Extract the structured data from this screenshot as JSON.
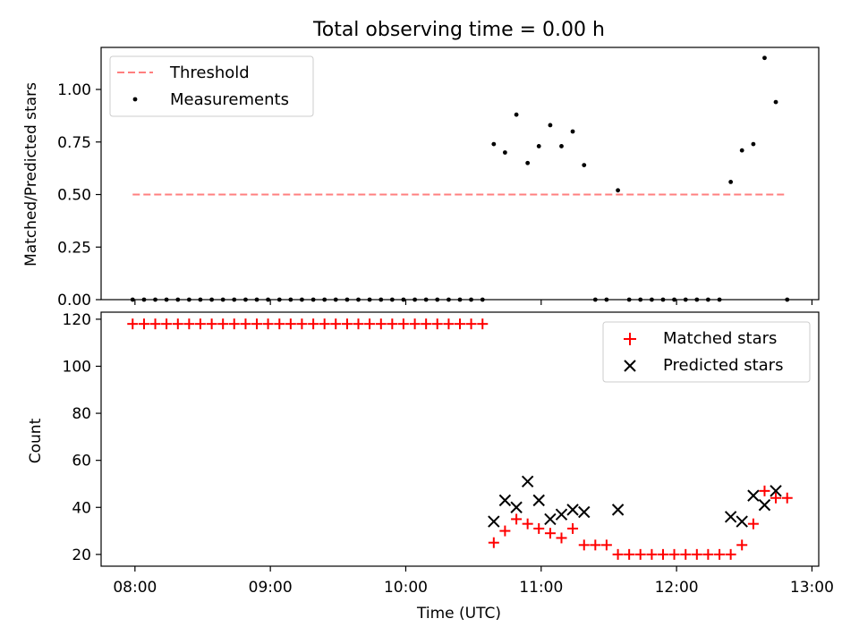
{
  "chart_data": {
    "title": "Total observing time = 0.00 h",
    "xlabel": "Time (UTC)",
    "x_ticks": [
      "08:00",
      "09:00",
      "10:00",
      "11:00",
      "12:00",
      "13:00"
    ],
    "x_tick_hours": [
      8,
      9,
      10,
      11,
      12,
      13
    ],
    "xlim_hours": [
      7.75,
      13.05
    ],
    "panels": [
      {
        "type": "scatter",
        "ylabel": "Matched/Predicted stars",
        "ylim": [
          0,
          1.2
        ],
        "y_ticks": [
          "0.00",
          "0.25",
          "0.50",
          "0.75",
          "1.00"
        ],
        "y_tick_values": [
          0,
          0.25,
          0.5,
          0.75,
          1.0
        ],
        "legend": {
          "position": "upper-left",
          "entries": [
            {
              "label": "Threshold",
              "kind": "dash",
              "color": "#ff7f7f"
            },
            {
              "label": "Measurements",
              "kind": "dot",
              "color": "#000000"
            }
          ]
        },
        "threshold": {
          "name": "Threshold",
          "y": 0.5,
          "x_range_hours": [
            7.983,
            12.817
          ],
          "color": "#ff7f7f"
        },
        "series": [
          {
            "name": "Measurements",
            "color": "#000000",
            "points": [
              [
                7.983,
                0
              ],
              [
                8.067,
                0
              ],
              [
                8.15,
                0
              ],
              [
                8.233,
                0
              ],
              [
                8.317,
                0
              ],
              [
                8.4,
                0
              ],
              [
                8.483,
                0
              ],
              [
                8.567,
                0
              ],
              [
                8.65,
                0
              ],
              [
                8.733,
                0
              ],
              [
                8.817,
                0
              ],
              [
                8.9,
                0
              ],
              [
                8.983,
                0
              ],
              [
                9.067,
                0
              ],
              [
                9.15,
                0
              ],
              [
                9.233,
                0
              ],
              [
                9.317,
                0
              ],
              [
                9.4,
                0
              ],
              [
                9.483,
                0
              ],
              [
                9.567,
                0
              ],
              [
                9.65,
                0
              ],
              [
                9.733,
                0
              ],
              [
                9.817,
                0
              ],
              [
                9.9,
                0
              ],
              [
                9.983,
                0
              ],
              [
                10.067,
                0
              ],
              [
                10.15,
                0
              ],
              [
                10.233,
                0
              ],
              [
                10.317,
                0
              ],
              [
                10.4,
                0
              ],
              [
                10.483,
                0
              ],
              [
                10.567,
                0
              ],
              [
                10.65,
                0.74
              ],
              [
                10.733,
                0.7
              ],
              [
                10.817,
                0.88
              ],
              [
                10.9,
                0.65
              ],
              [
                10.983,
                0.73
              ],
              [
                11.067,
                0.83
              ],
              [
                11.15,
                0.73
              ],
              [
                11.233,
                0.8
              ],
              [
                11.317,
                0.64
              ],
              [
                11.4,
                0
              ],
              [
                11.483,
                0
              ],
              [
                11.567,
                0.52
              ],
              [
                11.65,
                0
              ],
              [
                11.733,
                0
              ],
              [
                11.817,
                0
              ],
              [
                11.9,
                0
              ],
              [
                11.983,
                0
              ],
              [
                12.067,
                0
              ],
              [
                12.15,
                0
              ],
              [
                12.233,
                0
              ],
              [
                12.317,
                0
              ],
              [
                12.4,
                0.56
              ],
              [
                12.483,
                0.71
              ],
              [
                12.567,
                0.74
              ],
              [
                12.65,
                1.15
              ],
              [
                12.733,
                0.94
              ],
              [
                12.817,
                0
              ]
            ]
          }
        ]
      },
      {
        "type": "scatter",
        "ylabel": "Count",
        "ylim": [
          15,
          123
        ],
        "y_ticks": [
          "20",
          "40",
          "60",
          "80",
          "100",
          "120"
        ],
        "y_tick_values": [
          20,
          40,
          60,
          80,
          100,
          120
        ],
        "legend": {
          "position": "upper-right",
          "entries": [
            {
              "label": "Matched stars",
              "kind": "plus",
              "color": "#ff0000"
            },
            {
              "label": "Predicted stars",
              "kind": "x",
              "color": "#000000"
            }
          ]
        },
        "series": [
          {
            "name": "Matched stars",
            "color": "#ff0000",
            "marker": "plus",
            "points": [
              [
                7.983,
                118
              ],
              [
                8.067,
                118
              ],
              [
                8.15,
                118
              ],
              [
                8.233,
                118
              ],
              [
                8.317,
                118
              ],
              [
                8.4,
                118
              ],
              [
                8.483,
                118
              ],
              [
                8.567,
                118
              ],
              [
                8.65,
                118
              ],
              [
                8.733,
                118
              ],
              [
                8.817,
                118
              ],
              [
                8.9,
                118
              ],
              [
                8.983,
                118
              ],
              [
                9.067,
                118
              ],
              [
                9.15,
                118
              ],
              [
                9.233,
                118
              ],
              [
                9.317,
                118
              ],
              [
                9.4,
                118
              ],
              [
                9.483,
                118
              ],
              [
                9.567,
                118
              ],
              [
                9.65,
                118
              ],
              [
                9.733,
                118
              ],
              [
                9.817,
                118
              ],
              [
                9.9,
                118
              ],
              [
                9.983,
                118
              ],
              [
                10.067,
                118
              ],
              [
                10.15,
                118
              ],
              [
                10.233,
                118
              ],
              [
                10.317,
                118
              ],
              [
                10.4,
                118
              ],
              [
                10.483,
                118
              ],
              [
                10.567,
                118
              ],
              [
                10.65,
                25
              ],
              [
                10.733,
                30
              ],
              [
                10.817,
                35
              ],
              [
                10.9,
                33
              ],
              [
                10.983,
                31
              ],
              [
                11.067,
                29
              ],
              [
                11.15,
                27
              ],
              [
                11.233,
                31
              ],
              [
                11.317,
                24
              ],
              [
                11.4,
                24
              ],
              [
                11.483,
                24
              ],
              [
                11.567,
                20
              ],
              [
                11.65,
                20
              ],
              [
                11.733,
                20
              ],
              [
                11.817,
                20
              ],
              [
                11.9,
                20
              ],
              [
                11.983,
                20
              ],
              [
                12.067,
                20
              ],
              [
                12.15,
                20
              ],
              [
                12.233,
                20
              ],
              [
                12.317,
                20
              ],
              [
                12.4,
                20
              ],
              [
                12.483,
                24
              ],
              [
                12.567,
                33
              ],
              [
                12.65,
                47
              ],
              [
                12.733,
                44
              ],
              [
                12.817,
                44
              ]
            ]
          },
          {
            "name": "Predicted stars",
            "color": "#000000",
            "marker": "x",
            "points": [
              [
                10.65,
                34
              ],
              [
                10.733,
                43
              ],
              [
                10.817,
                40
              ],
              [
                10.9,
                51
              ],
              [
                10.983,
                43
              ],
              [
                11.067,
                35
              ],
              [
                11.15,
                37
              ],
              [
                11.233,
                39
              ],
              [
                11.317,
                38
              ],
              [
                11.567,
                39
              ],
              [
                12.4,
                36
              ],
              [
                12.483,
                34
              ],
              [
                12.567,
                45
              ],
              [
                12.65,
                41
              ],
              [
                12.733,
                47
              ]
            ]
          }
        ]
      }
    ]
  }
}
